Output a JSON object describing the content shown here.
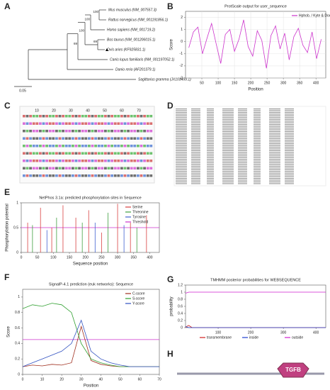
{
  "panel_labels": [
    "A",
    "B",
    "C",
    "D",
    "E",
    "F",
    "G",
    "H"
  ],
  "tree": {
    "taxa": [
      "Mus musculus (NM_007557.3)",
      "Rattus norvegicus (NM_001191856.1)",
      "Homo sapiens (NM_001719.2)",
      "Bos taurus (NM_001206015.1)",
      "Ovis aries (KF925831.1)",
      "Canis lupus familiaris (NM_001197052.1)",
      "Danio rerio (AF201379.1)",
      "Sagittarius gramma (JX103459.1)"
    ],
    "bootstrap": [
      100,
      100,
      69,
      100,
      69
    ],
    "scale": "0.05"
  },
  "sequence_ruler": [
    10,
    20,
    30,
    40,
    50,
    60,
    70
  ],
  "domain_name": "TGFB",
  "chart_data": [
    {
      "type": "line",
      "title": "ProtScale output for user_sequence",
      "xlabel": "Position",
      "ylabel": "Score",
      "x": [
        10,
        24,
        38,
        52,
        66,
        80,
        94,
        108,
        122,
        136,
        150,
        164,
        178,
        192,
        206,
        220,
        234,
        248,
        262,
        276,
        290,
        304,
        318,
        332,
        346,
        360,
        374,
        388,
        402,
        416
      ],
      "series": [
        {
          "name": "Hphob. / Kyte & Doolittle",
          "color": "#cc33cc",
          "values": [
            -0.5,
            0.8,
            1.2,
            -1.0,
            0.3,
            1.5,
            -0.2,
            -1.8,
            0.6,
            1.0,
            -0.8,
            0.2,
            1.8,
            -0.4,
            -1.2,
            0.9,
            0.1,
            -2.2,
            0.5,
            1.3,
            -0.6,
            0.7,
            -1.5,
            0.4,
            1.1,
            -0.3,
            -0.9,
            0.8,
            -1.4,
            0.2
          ]
        }
      ],
      "xlim": [
        0,
        430
      ],
      "ylim": [
        -3,
        2.5
      ],
      "xticks": [
        50,
        100,
        150,
        200,
        250,
        300,
        350,
        400
      ],
      "yticks": [
        -3,
        -2,
        -1,
        0,
        1,
        2
      ],
      "grid": true
    },
    {
      "type": "stem",
      "title": "NetPhos 3.1a: predicted phosphorylation sites in Sequence",
      "xlabel": "Sequence position",
      "ylabel": "Phosphorylation potential",
      "series": [
        {
          "name": "Serine",
          "color": "#d94040",
          "x": [
            20,
            60,
            95,
            130,
            170,
            210,
            250,
            300,
            340,
            390
          ],
          "values": [
            0.6,
            0.9,
            0.5,
            0.95,
            0.7,
            0.85,
            0.4,
            0.98,
            0.6,
            0.75
          ]
        },
        {
          "name": "Threonine",
          "color": "#40a040",
          "x": [
            35,
            110,
            190,
            270,
            360
          ],
          "values": [
            0.55,
            0.7,
            0.6,
            0.8,
            0.5
          ]
        },
        {
          "name": "Tyrosine",
          "color": "#4060d0",
          "x": [
            80,
            230,
            320
          ],
          "values": [
            0.45,
            0.6,
            0.55
          ]
        }
      ],
      "threshold_name": "Threshold",
      "threshold": 0.5,
      "threshold_color": "#cc33cc",
      "xlim": [
        0,
        430
      ],
      "ylim": [
        0,
        1
      ],
      "xticks": [
        0,
        50,
        100,
        150,
        200,
        250,
        300,
        350,
        400
      ],
      "yticks": [
        0,
        0.5,
        1
      ],
      "grid": false
    },
    {
      "type": "line",
      "title": "SignalP-4.1 prediction (euk networks): Sequence",
      "xlabel": "Position",
      "ylabel": "Score",
      "x": [
        0,
        5,
        10,
        15,
        20,
        25,
        30,
        35,
        40,
        45,
        50,
        55,
        60,
        65,
        70
      ],
      "series": [
        {
          "name": "C-score",
          "color": "#a03020",
          "values": [
            0.1,
            0.12,
            0.11,
            0.13,
            0.12,
            0.15,
            0.62,
            0.18,
            0.13,
            0.11,
            0.1,
            0.1,
            0.1,
            0.1,
            0.1
          ]
        },
        {
          "name": "S-score",
          "color": "#30a030",
          "values": [
            0.85,
            0.9,
            0.88,
            0.92,
            0.9,
            0.8,
            0.4,
            0.2,
            0.15,
            0.12,
            0.1,
            0.1,
            0.1,
            0.1,
            0.1
          ]
        },
        {
          "name": "Y-score",
          "color": "#3050c0",
          "values": [
            0.1,
            0.15,
            0.2,
            0.25,
            0.3,
            0.4,
            0.7,
            0.3,
            0.2,
            0.15,
            0.12,
            0.1,
            0.1,
            0.1,
            0.1
          ]
        }
      ],
      "threshold": 0.45,
      "threshold_color": "#cc33cc",
      "xlim": [
        0,
        70
      ],
      "ylim": [
        0,
        1.1
      ],
      "xticks": [
        0,
        10,
        20,
        30,
        40,
        50,
        60,
        70
      ],
      "yticks": [
        0,
        0.2,
        0.4,
        0.6,
        0.8,
        1
      ],
      "grid": false
    },
    {
      "type": "line",
      "title": "TMHMM posterior probabilities for WEBSEQUENCE",
      "ylabel": "probability",
      "series": [
        {
          "name": "transmembrane",
          "color": "#d02020",
          "x": [
            0,
            5,
            10,
            15,
            20,
            430
          ],
          "values": [
            0,
            0.04,
            0.06,
            0.03,
            0,
            0
          ]
        },
        {
          "name": "inside",
          "color": "#2040d0",
          "x": [
            0,
            10,
            20,
            430
          ],
          "values": [
            0.03,
            0,
            0,
            0
          ]
        },
        {
          "name": "outside",
          "color": "#d020d0",
          "x": [
            0,
            10,
            20,
            430
          ],
          "values": [
            0.97,
            1,
            1,
            1
          ]
        }
      ],
      "xlim": [
        0,
        430
      ],
      "ylim": [
        0,
        1.2
      ],
      "xticks": [
        100,
        200,
        300,
        400
      ],
      "yticks": [
        0,
        0.2,
        0.4,
        0.6,
        0.8,
        1,
        1.2
      ],
      "grid": false
    }
  ]
}
